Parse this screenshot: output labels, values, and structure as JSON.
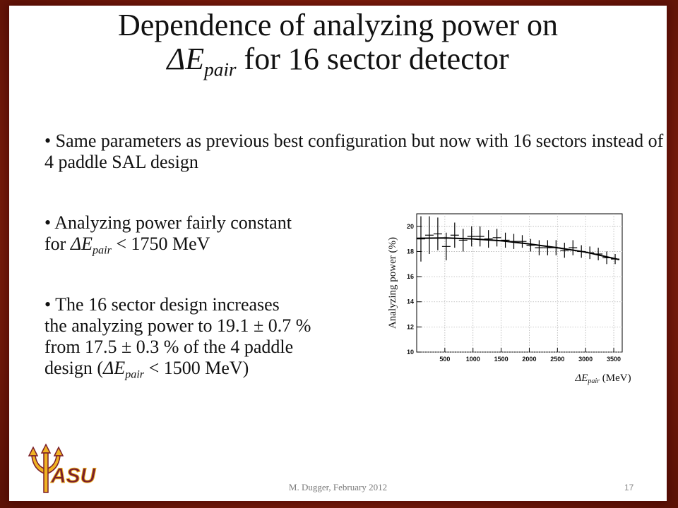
{
  "title": {
    "line1": "Dependence of analyzing power on",
    "line2_sym": "ΔE",
    "line2_sub": "pair",
    "line2_rest": " for 16 sector detector"
  },
  "bullets": {
    "b1": {
      "bullet": "•",
      "text": "Same parameters as previous best configuration but now with 16 sectors instead of 4 paddle SAL design"
    },
    "b2": {
      "bullet": "•",
      "line1": "Analyzing power fairly constant",
      "pre": "for ",
      "sym": "ΔE",
      "sub": "pair",
      "post": " < 1750 MeV"
    },
    "b3": {
      "bullet": "•",
      "line1": "The 16 sector design increases",
      "line2": "the analyzing power to 19.1 ± 0.7 %",
      "line3": "from 17.5 ± 0.3 % of the 4 paddle",
      "pre": "design (",
      "sym": "ΔE",
      "sub": "pair",
      "post": " < 1500 MeV)"
    }
  },
  "footer": {
    "author": "M. Dugger, February 2012",
    "page": "17"
  },
  "logo": {
    "text": "ASU"
  },
  "colors": {
    "logo_gold": "#f0b323",
    "logo_maroon": "#7a1f2b",
    "border": "#9a2a12"
  },
  "chart_data": {
    "type": "scatter",
    "title": "",
    "ylabel": "Analyzing power (%)",
    "xlabel_sym": "ΔE",
    "xlabel_sub": "pair",
    "xlabel_unit": " (MeV)",
    "xlim": [
      0,
      3650
    ],
    "ylim": [
      10,
      21
    ],
    "xticks": [
      500,
      1000,
      1500,
      2000,
      2500,
      3000,
      3500
    ],
    "yticks": [
      10,
      12,
      14,
      16,
      18,
      20
    ],
    "grid": true,
    "points": [
      {
        "x": 75,
        "y": 19.0,
        "xerr": 75,
        "yerr": 1.8
      },
      {
        "x": 225,
        "y": 19.3,
        "xerr": 75,
        "yerr": 1.5
      },
      {
        "x": 375,
        "y": 19.4,
        "xerr": 75,
        "yerr": 1.3
      },
      {
        "x": 525,
        "y": 18.4,
        "xerr": 75,
        "yerr": 1.1
      },
      {
        "x": 675,
        "y": 19.3,
        "xerr": 75,
        "yerr": 1.0
      },
      {
        "x": 825,
        "y": 18.9,
        "xerr": 75,
        "yerr": 0.9
      },
      {
        "x": 975,
        "y": 19.2,
        "xerr": 75,
        "yerr": 0.8
      },
      {
        "x": 1125,
        "y": 19.2,
        "xerr": 75,
        "yerr": 0.8
      },
      {
        "x": 1275,
        "y": 19.0,
        "xerr": 75,
        "yerr": 0.7
      },
      {
        "x": 1425,
        "y": 19.1,
        "xerr": 75,
        "yerr": 0.7
      },
      {
        "x": 1575,
        "y": 18.9,
        "xerr": 75,
        "yerr": 0.6
      },
      {
        "x": 1725,
        "y": 18.8,
        "xerr": 75,
        "yerr": 0.6
      },
      {
        "x": 1875,
        "y": 18.8,
        "xerr": 75,
        "yerr": 0.5
      },
      {
        "x": 2025,
        "y": 18.5,
        "xerr": 75,
        "yerr": 0.5
      },
      {
        "x": 2175,
        "y": 18.3,
        "xerr": 75,
        "yerr": 0.6
      },
      {
        "x": 2325,
        "y": 18.3,
        "xerr": 75,
        "yerr": 0.6
      },
      {
        "x": 2475,
        "y": 18.3,
        "xerr": 75,
        "yerr": 0.6
      },
      {
        "x": 2625,
        "y": 18.1,
        "xerr": 75,
        "yerr": 0.6
      },
      {
        "x": 2775,
        "y": 18.3,
        "xerr": 75,
        "yerr": 0.6
      },
      {
        "x": 2925,
        "y": 18.0,
        "xerr": 75,
        "yerr": 0.5
      },
      {
        "x": 3075,
        "y": 17.9,
        "xerr": 75,
        "yerr": 0.5
      },
      {
        "x": 3225,
        "y": 17.8,
        "xerr": 75,
        "yerr": 0.5
      },
      {
        "x": 3375,
        "y": 17.5,
        "xerr": 75,
        "yerr": 0.5
      },
      {
        "x": 3525,
        "y": 17.4,
        "xerr": 75,
        "yerr": 0.4
      }
    ],
    "fit": {
      "x": [
        0,
        500,
        1000,
        1500,
        2000,
        2500,
        3000,
        3600
      ],
      "y": [
        19.05,
        19.08,
        19.0,
        18.85,
        18.6,
        18.3,
        17.95,
        17.35
      ]
    }
  }
}
